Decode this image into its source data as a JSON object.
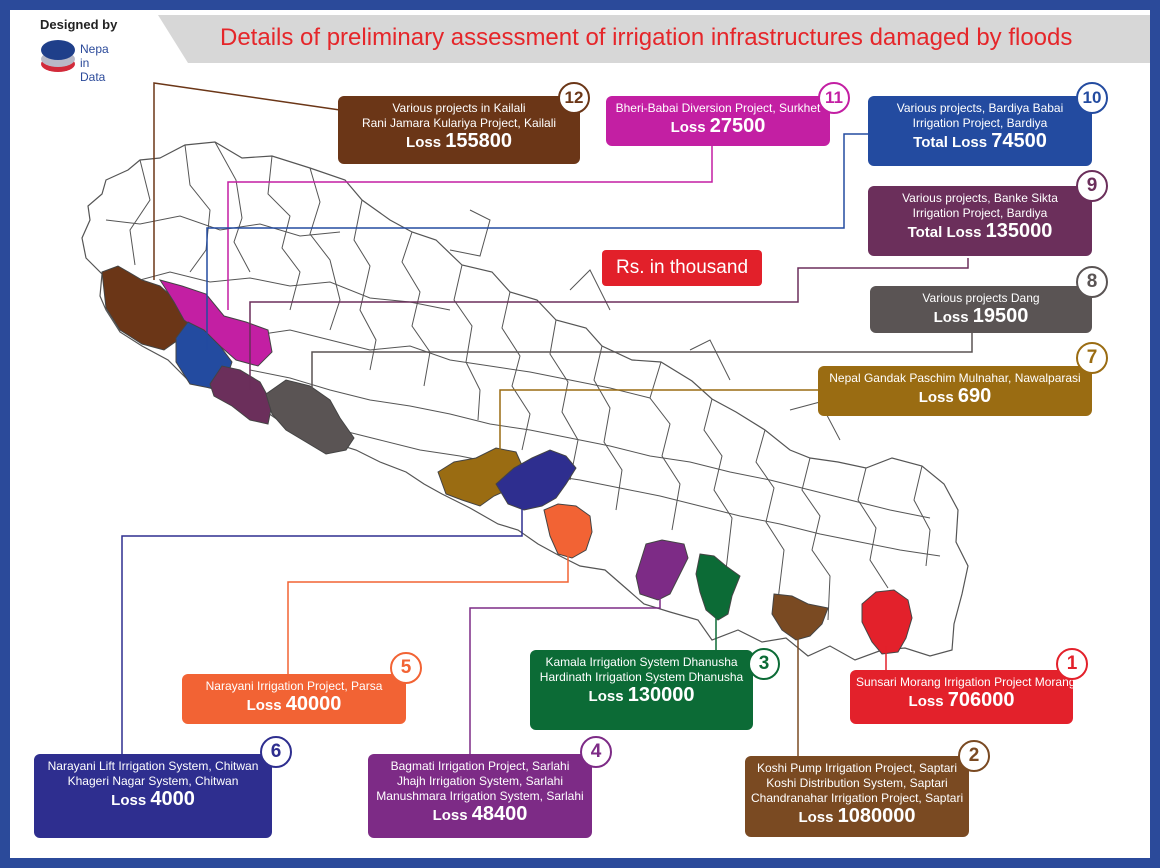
{
  "header": {
    "credit": "Designed by",
    "logo_line1": "Nepa",
    "logo_line2": "in",
    "logo_line3": "Data",
    "title": "Details of preliminary assessment of irrigation infrastructures damaged by floods"
  },
  "unit_label": "Rs. in thousand",
  "colors": {
    "background_frame": "#2b4a9a",
    "title": "#e5262a",
    "district_outline": "#555555",
    "highlights": [
      "#e3212b",
      "#7a4a22",
      "#0c6b36",
      "#7d2b86",
      "#f26334",
      "#2e2e8f",
      "#9a6c12",
      "#5a5454",
      "#6b2f5b",
      "#234ba0",
      "#c31fa3",
      "#6b3617"
    ]
  },
  "projects": [
    {
      "num": "1",
      "lines": [
        "Sunsari Morang Irrigation Project Morang"
      ],
      "loss_label": "Loss",
      "loss_value": "706000",
      "color": "#e3212b"
    },
    {
      "num": "2",
      "lines": [
        "Koshi Pump Irrigation Project, Saptari",
        "Koshi Distribution System, Saptari",
        "Chandranahar Irrigation Project, Saptari"
      ],
      "loss_label": "Loss",
      "loss_value": "1080000",
      "color": "#7a4a22"
    },
    {
      "num": "3",
      "lines": [
        "Kamala Irrigation System Dhanusha",
        "Hardinath Irrigation System Dhanusha"
      ],
      "loss_label": "Loss",
      "loss_value": "130000",
      "color": "#0c6b36"
    },
    {
      "num": "4",
      "lines": [
        "Bagmati Irrigation Project, Sarlahi",
        "Jhajh Irrigation System, Sarlahi",
        "Manushmara Irrigation System, Sarlahi"
      ],
      "loss_label": "Loss",
      "loss_value": "48400",
      "color": "#7d2b86"
    },
    {
      "num": "5",
      "lines": [
        "Narayani Irrigation Project, Parsa"
      ],
      "loss_label": "Loss",
      "loss_value": "40000",
      "color": "#f26334"
    },
    {
      "num": "6",
      "lines": [
        "Narayani Lift Irrigation System, Chitwan",
        "Khageri Nagar System, Chitwan"
      ],
      "loss_label": "Loss",
      "loss_value": "4000",
      "color": "#2e2e8f"
    },
    {
      "num": "7",
      "lines": [
        "Nepal Gandak Paschim Mulnahar, Nawalparasi"
      ],
      "loss_label": "Loss",
      "loss_value": "690",
      "color": "#9a6c12"
    },
    {
      "num": "8",
      "lines": [
        "Various projects Dang"
      ],
      "loss_label": "Loss",
      "loss_value": "19500",
      "color": "#5a5454"
    },
    {
      "num": "9",
      "lines": [
        "Various projects, Banke Sikta",
        "Irrigation Project, Bardiya"
      ],
      "loss_label": "Total Loss",
      "loss_value": "135000",
      "color": "#6b2f5b"
    },
    {
      "num": "10",
      "lines": [
        "Various projects, Bardiya Babai",
        "Irrigation Project, Bardiya"
      ],
      "loss_label": "Total Loss",
      "loss_value": "74500",
      "color": "#234ba0"
    },
    {
      "num": "11",
      "lines": [
        "Bheri-Babai Diversion Project, Surkhet"
      ],
      "loss_label": "Loss",
      "loss_value": "27500",
      "color": "#c31fa3"
    },
    {
      "num": "12",
      "lines": [
        "Various projects in Kailali",
        "Rani Jamara Kulariya Project, Kailali"
      ],
      "loss_label": "Loss",
      "loss_value": "155800",
      "color": "#6b3617"
    }
  ]
}
